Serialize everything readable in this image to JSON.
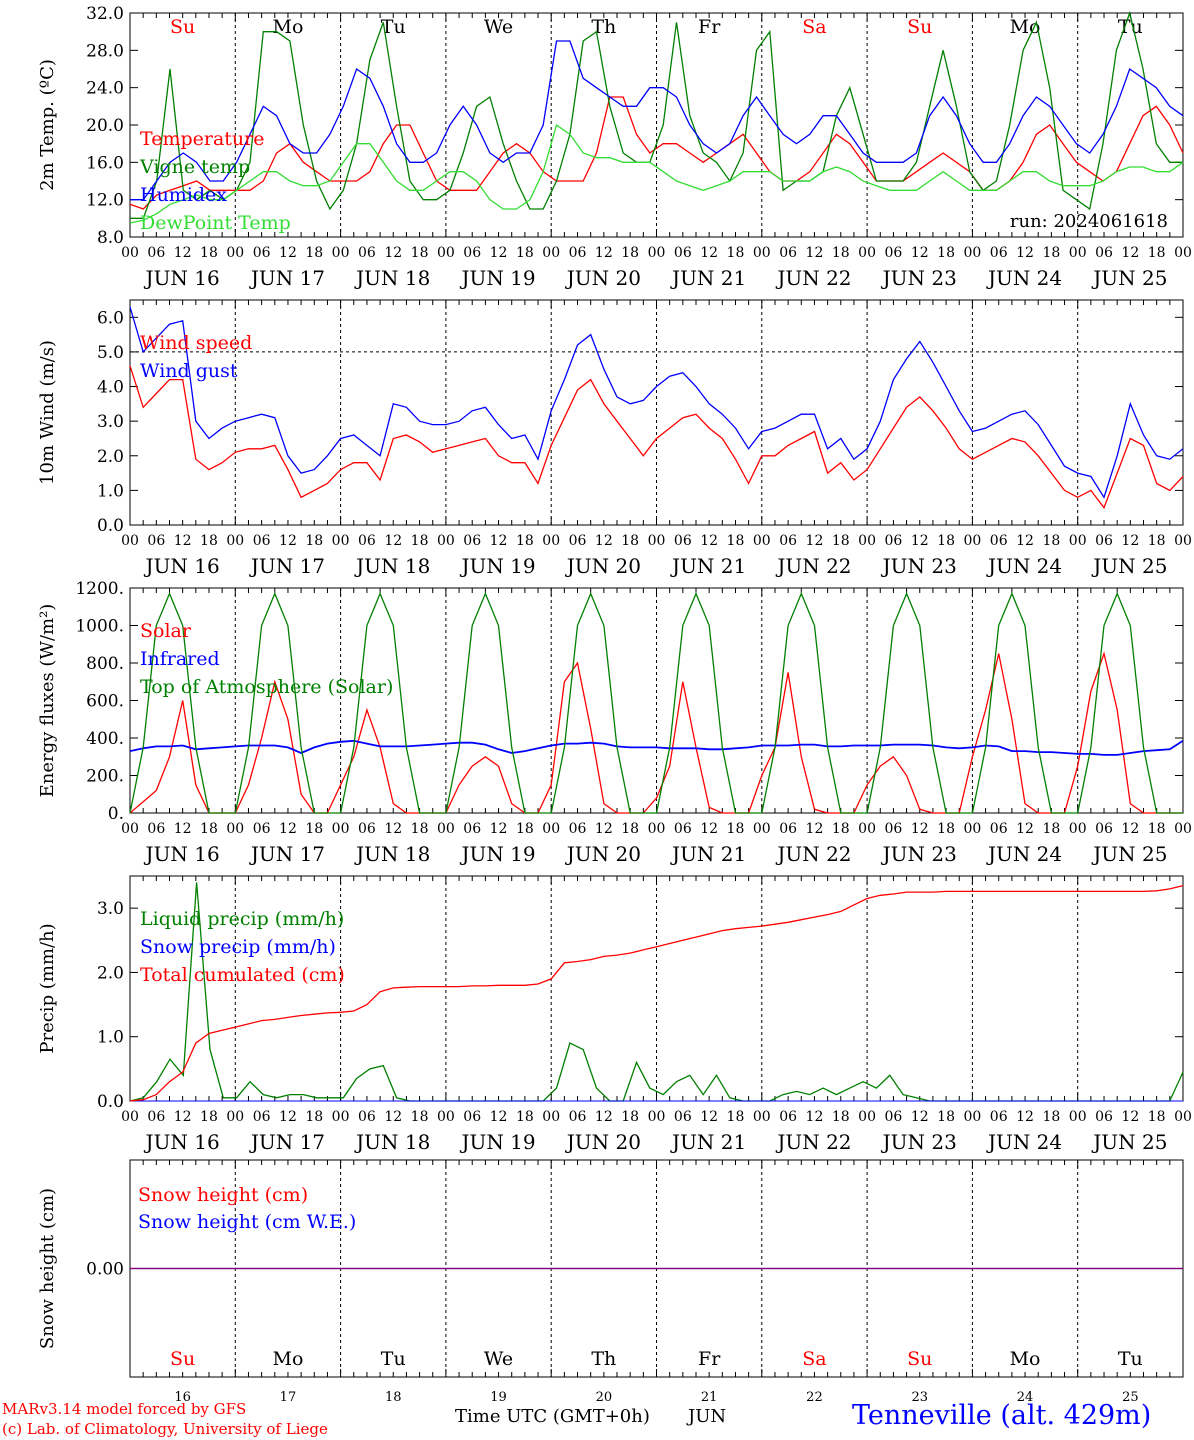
{
  "days": [
    "JUN 16",
    "JUN 17",
    "JUN 18",
    "JUN 19",
    "JUN 20",
    "JUN 21",
    "JUN 22",
    "JUN 23",
    "JUN 24",
    "JUN 25"
  ],
  "weekdays": [
    "Su",
    "Mo",
    "Tu",
    "We",
    "Th",
    "Fr",
    "Sa",
    "Su",
    "Mo",
    "Tu"
  ],
  "day_numbers": [
    "16",
    "17",
    "18",
    "19",
    "20",
    "21",
    "22",
    "23",
    "24",
    "25"
  ],
  "hour_ticks": [
    "00",
    "06",
    "12",
    "18"
  ],
  "last_tick": "00",
  "run_label": "run: 2024061618",
  "footer": {
    "line1": "MARv3.14 model forced by GFS",
    "line2": "(c) Lab. of Climatology, University of Liege",
    "axis_title": "Time UTC (GMT+0h)",
    "month": "JUN",
    "station": "Tenneville (alt. 429m)"
  },
  "colors": {
    "red": "#ff0000",
    "green": "#008000",
    "blue": "#0000ff",
    "lightgreen": "#33dd33",
    "purple": "#800080",
    "weekend": "#ff0000",
    "weekday": "#000000",
    "station": "#0000ff"
  },
  "chart_data": [
    {
      "type": "line",
      "ylabel": "2m Temp. (ºC)",
      "ylim": [
        8,
        32
      ],
      "yticks": [
        "8.0",
        "12.0",
        "16.0",
        "20.0",
        "24.0",
        "28.0",
        "32.0"
      ],
      "x_unit": "hours since JUN 16 00 UTC (3-hourly)",
      "series": [
        {
          "name": "Temperature",
          "color": "#ff0000",
          "values": [
            11.5,
            11,
            12.5,
            13,
            13.5,
            14,
            13,
            13,
            13,
            13,
            14,
            17,
            18,
            16,
            15,
            14,
            14,
            14,
            15,
            18,
            20,
            20,
            17,
            14,
            13,
            13,
            13,
            15,
            17,
            18,
            17,
            15,
            14,
            14,
            14,
            17,
            23,
            23,
            19,
            17,
            18,
            18,
            17,
            16,
            17,
            18,
            19,
            17,
            15,
            14,
            14,
            15,
            17,
            19,
            18,
            16,
            14,
            14,
            14,
            15,
            16,
            17,
            16,
            15,
            13,
            13,
            14,
            16,
            19,
            20,
            18,
            16,
            15,
            14,
            15,
            18,
            21,
            22,
            20,
            17
          ]
        },
        {
          "name": "Vigne temp",
          "color": "#008000",
          "values": [
            10,
            10,
            14,
            26,
            13,
            12,
            13,
            12,
            13,
            16,
            30,
            30,
            29,
            20,
            14,
            11,
            13,
            18,
            27,
            31,
            22,
            14,
            12,
            12,
            13,
            17,
            22,
            23,
            18,
            14,
            11,
            11,
            14,
            19,
            29,
            30,
            22,
            17,
            16,
            16,
            20,
            31,
            21,
            17,
            16,
            14,
            17,
            28,
            30,
            13,
            14,
            14,
            15,
            21,
            24,
            19,
            14,
            14,
            14,
            16,
            22,
            28,
            22,
            15,
            13,
            14,
            20,
            28,
            31,
            24,
            13,
            12,
            11,
            18,
            28,
            32,
            26,
            18,
            16,
            16
          ]
        },
        {
          "name": "Humidex",
          "color": "#0000ff",
          "values": [
            12,
            12,
            14,
            16,
            17,
            16,
            14,
            14,
            16,
            19,
            22,
            21,
            18,
            17,
            17,
            19,
            22,
            26,
            25,
            22,
            18,
            16,
            16,
            17,
            20,
            22,
            20,
            17,
            16,
            17,
            17,
            20,
            29,
            29,
            25,
            24,
            23,
            22,
            22,
            24,
            24,
            23,
            20,
            18,
            17,
            18,
            21,
            23,
            21,
            19,
            18,
            19,
            21,
            21,
            19,
            17,
            16,
            16,
            16,
            17,
            21,
            23,
            21,
            18,
            16,
            16,
            18,
            21,
            23,
            22,
            20,
            18,
            17,
            19,
            22,
            26,
            25,
            24,
            22,
            21
          ]
        },
        {
          "name": "DewPoint Temp",
          "color": "#33dd33",
          "values": [
            9.5,
            9.8,
            10.5,
            11.5,
            12,
            12.5,
            12,
            12,
            13,
            14,
            15,
            15,
            14,
            13.5,
            13.5,
            14,
            16,
            18,
            18,
            16,
            14,
            13,
            13,
            14,
            15,
            15,
            14,
            12,
            11,
            11,
            12,
            15,
            20,
            19,
            17,
            16.5,
            16.5,
            16,
            16,
            16,
            15,
            14,
            13.5,
            13,
            13.5,
            14,
            15,
            15,
            15,
            14,
            14,
            14,
            15,
            15.5,
            15,
            14,
            13.5,
            13,
            13,
            13,
            14,
            15,
            14,
            13,
            13,
            13,
            14,
            15,
            15,
            14,
            13.5,
            13.5,
            13.5,
            14,
            15,
            15.5,
            15.5,
            15,
            15,
            16
          ]
        }
      ]
    },
    {
      "type": "line",
      "ylabel": "10m Wind (m/s)",
      "ylim": [
        0,
        6.5
      ],
      "yticks": [
        "0.0",
        "1.0",
        "2.0",
        "3.0",
        "4.0",
        "5.0",
        "6.0"
      ],
      "reference_line": 5.0,
      "series": [
        {
          "name": "Wind speed",
          "color": "#ff0000",
          "values": [
            4.6,
            3.4,
            3.8,
            4.2,
            4.2,
            1.9,
            1.6,
            1.8,
            2.1,
            2.2,
            2.2,
            2.3,
            1.6,
            0.8,
            1.0,
            1.2,
            1.6,
            1.8,
            1.8,
            1.3,
            2.5,
            2.6,
            2.4,
            2.1,
            2.2,
            2.3,
            2.4,
            2.5,
            2.0,
            1.8,
            1.8,
            1.2,
            2.3,
            3.1,
            3.9,
            4.2,
            3.5,
            3.0,
            2.5,
            2.0,
            2.5,
            2.8,
            3.1,
            3.2,
            2.8,
            2.5,
            1.9,
            1.2,
            2.0,
            2.0,
            2.3,
            2.5,
            2.7,
            1.5,
            1.8,
            1.3,
            1.6,
            2.2,
            2.8,
            3.4,
            3.7,
            3.3,
            2.8,
            2.2,
            1.9,
            2.1,
            2.3,
            2.5,
            2.4,
            2.0,
            1.5,
            1.0,
            0.8,
            1.0,
            0.5,
            1.5,
            2.5,
            2.3,
            1.2,
            1.0,
            1.4
          ]
        },
        {
          "name": "Wind gust",
          "color": "#0000ff",
          "values": [
            6.3,
            5.0,
            5.4,
            5.8,
            5.9,
            3.0,
            2.5,
            2.8,
            3.0,
            3.1,
            3.2,
            3.1,
            2.0,
            1.5,
            1.6,
            2.0,
            2.5,
            2.6,
            2.3,
            2.0,
            3.5,
            3.4,
            3.0,
            2.9,
            2.9,
            3.0,
            3.3,
            3.4,
            2.9,
            2.5,
            2.6,
            1.9,
            3.3,
            4.2,
            5.2,
            5.5,
            4.5,
            3.7,
            3.5,
            3.6,
            4.0,
            4.3,
            4.4,
            4.0,
            3.5,
            3.2,
            2.8,
            2.2,
            2.7,
            2.8,
            3.0,
            3.2,
            3.2,
            2.2,
            2.5,
            1.9,
            2.2,
            3.0,
            4.2,
            4.8,
            5.3,
            4.7,
            4.0,
            3.3,
            2.7,
            2.8,
            3.0,
            3.2,
            3.3,
            2.9,
            2.3,
            1.7,
            1.5,
            1.4,
            0.8,
            2.0,
            3.5,
            2.6,
            2.0,
            1.9,
            2.2
          ]
        }
      ]
    },
    {
      "type": "line",
      "ylabel": "Energy fluxes (W/m²)",
      "ylim": [
        0,
        1200
      ],
      "yticks": [
        "0.",
        "200.",
        "400.",
        "600.",
        "800.",
        "1000.",
        "1200."
      ],
      "series": [
        {
          "name": "Solar",
          "color": "#ff0000",
          "values": [
            0,
            60,
            120,
            300,
            600,
            150,
            0,
            0,
            0,
            150,
            400,
            700,
            500,
            100,
            0,
            0,
            150,
            300,
            550,
            350,
            50,
            0,
            0,
            0,
            0,
            150,
            250,
            300,
            250,
            50,
            0,
            0,
            150,
            700,
            800,
            450,
            50,
            0,
            0,
            0,
            80,
            250,
            700,
            350,
            30,
            0,
            0,
            0,
            200,
            350,
            750,
            300,
            20,
            0,
            0,
            0,
            150,
            250,
            300,
            200,
            20,
            0,
            0,
            0,
            300,
            550,
            850,
            500,
            50,
            0,
            0,
            0,
            250,
            650,
            850,
            550,
            50,
            0,
            0,
            0,
            0
          ]
        },
        {
          "name": "Infrared",
          "color": "#0000ff",
          "values": [
            330,
            345,
            355,
            355,
            360,
            340,
            345,
            350,
            355,
            360,
            360,
            360,
            350,
            320,
            350,
            370,
            380,
            385,
            370,
            355,
            355,
            355,
            360,
            365,
            370,
            375,
            375,
            365,
            340,
            320,
            330,
            345,
            360,
            370,
            370,
            375,
            370,
            355,
            350,
            350,
            350,
            345,
            345,
            345,
            340,
            340,
            345,
            350,
            360,
            360,
            360,
            365,
            365,
            355,
            355,
            360,
            360,
            360,
            365,
            365,
            365,
            360,
            350,
            345,
            350,
            360,
            355,
            330,
            330,
            325,
            325,
            320,
            315,
            315,
            310,
            310,
            320,
            330,
            335,
            340,
            385
          ]
        },
        {
          "name": "Top of Atmosphere (Solar)",
          "color": "#008000",
          "values": [
            0,
            350,
            1000,
            1170,
            1000,
            350,
            0,
            0,
            0,
            350,
            1000,
            1170,
            1000,
            350,
            0,
            0,
            0,
            350,
            1000,
            1170,
            1000,
            350,
            0,
            0,
            0,
            350,
            1000,
            1170,
            1000,
            350,
            0,
            0,
            0,
            350,
            1000,
            1170,
            1000,
            350,
            0,
            0,
            0,
            350,
            1000,
            1170,
            1000,
            350,
            0,
            0,
            0,
            350,
            1000,
            1170,
            1000,
            350,
            0,
            0,
            0,
            350,
            1000,
            1170,
            1000,
            350,
            0,
            0,
            0,
            350,
            1000,
            1170,
            1000,
            350,
            0,
            0,
            0,
            350,
            1000,
            1170,
            1000,
            350,
            0,
            0,
            0
          ]
        }
      ]
    },
    {
      "type": "line",
      "ylabel": "Precip (mm/h)",
      "ylim": [
        0,
        3.5
      ],
      "yticks": [
        "0.0",
        "1.0",
        "2.0",
        "3.0"
      ],
      "series": [
        {
          "name": "Liquid precip (mm/h)",
          "color": "#008000",
          "values": [
            0,
            0.05,
            0.3,
            0.65,
            0.4,
            3.4,
            0.8,
            0.05,
            0.05,
            0.3,
            0.1,
            0.05,
            0.1,
            0.1,
            0.05,
            0.05,
            0.05,
            0.35,
            0.5,
            0.55,
            0.05,
            0,
            0,
            0,
            0,
            0,
            0,
            0,
            0,
            0,
            0,
            0,
            0.2,
            0.9,
            0.8,
            0.2,
            0,
            0,
            0.6,
            0.2,
            0.1,
            0.3,
            0.4,
            0.1,
            0.4,
            0.05,
            0,
            0,
            0,
            0.1,
            0.15,
            0.1,
            0.2,
            0.1,
            0.2,
            0.3,
            0.2,
            0.4,
            0.1,
            0.05,
            0,
            0,
            0,
            0,
            0,
            0,
            0,
            0,
            0,
            0,
            0,
            0,
            0,
            0,
            0,
            0,
            0,
            0,
            0,
            0.45
          ]
        },
        {
          "name": "Snow precip (mm/h)",
          "color": "#0000ff",
          "values": [
            0,
            0,
            0,
            0,
            0,
            0,
            0,
            0,
            0,
            0,
            0,
            0,
            0,
            0,
            0,
            0,
            0,
            0,
            0,
            0,
            0,
            0,
            0,
            0,
            0,
            0,
            0,
            0,
            0,
            0,
            0,
            0,
            0,
            0,
            0,
            0,
            0,
            0,
            0,
            0,
            0,
            0,
            0,
            0,
            0,
            0,
            0,
            0,
            0,
            0,
            0,
            0,
            0,
            0,
            0,
            0,
            0,
            0,
            0,
            0,
            0,
            0,
            0,
            0,
            0,
            0,
            0,
            0,
            0,
            0,
            0,
            0,
            0,
            0,
            0,
            0,
            0,
            0,
            0,
            0,
            0
          ]
        },
        {
          "name": "Total cumulated (cm)",
          "color": "#ff0000",
          "values": [
            0,
            0.02,
            0.1,
            0.3,
            0.45,
            0.9,
            1.05,
            1.1,
            1.15,
            1.2,
            1.25,
            1.27,
            1.3,
            1.33,
            1.35,
            1.37,
            1.38,
            1.4,
            1.5,
            1.7,
            1.76,
            1.77,
            1.78,
            1.78,
            1.78,
            1.78,
            1.79,
            1.79,
            1.8,
            1.8,
            1.8,
            1.82,
            1.9,
            2.15,
            2.17,
            2.2,
            2.25,
            2.27,
            2.3,
            2.35,
            2.4,
            2.45,
            2.5,
            2.55,
            2.6,
            2.65,
            2.68,
            2.7,
            2.72,
            2.75,
            2.78,
            2.82,
            2.86,
            2.9,
            2.95,
            3.05,
            3.15,
            3.2,
            3.22,
            3.25,
            3.25,
            3.25,
            3.26,
            3.26,
            3.26,
            3.26,
            3.26,
            3.26,
            3.26,
            3.26,
            3.26,
            3.26,
            3.26,
            3.26,
            3.26,
            3.26,
            3.26,
            3.26,
            3.27,
            3.3,
            3.35
          ]
        }
      ]
    },
    {
      "type": "line",
      "ylabel": "Snow height (cm)",
      "ylim": [
        -1,
        1
      ],
      "yticks": [
        "0.00"
      ],
      "series": [
        {
          "name": "Snow height (cm)",
          "color": "#ff0000",
          "values": [
            0,
            0
          ]
        },
        {
          "name": "Snow height (cm W.E.)",
          "color": "#0000ff",
          "values": [
            0,
            0
          ]
        }
      ]
    }
  ]
}
